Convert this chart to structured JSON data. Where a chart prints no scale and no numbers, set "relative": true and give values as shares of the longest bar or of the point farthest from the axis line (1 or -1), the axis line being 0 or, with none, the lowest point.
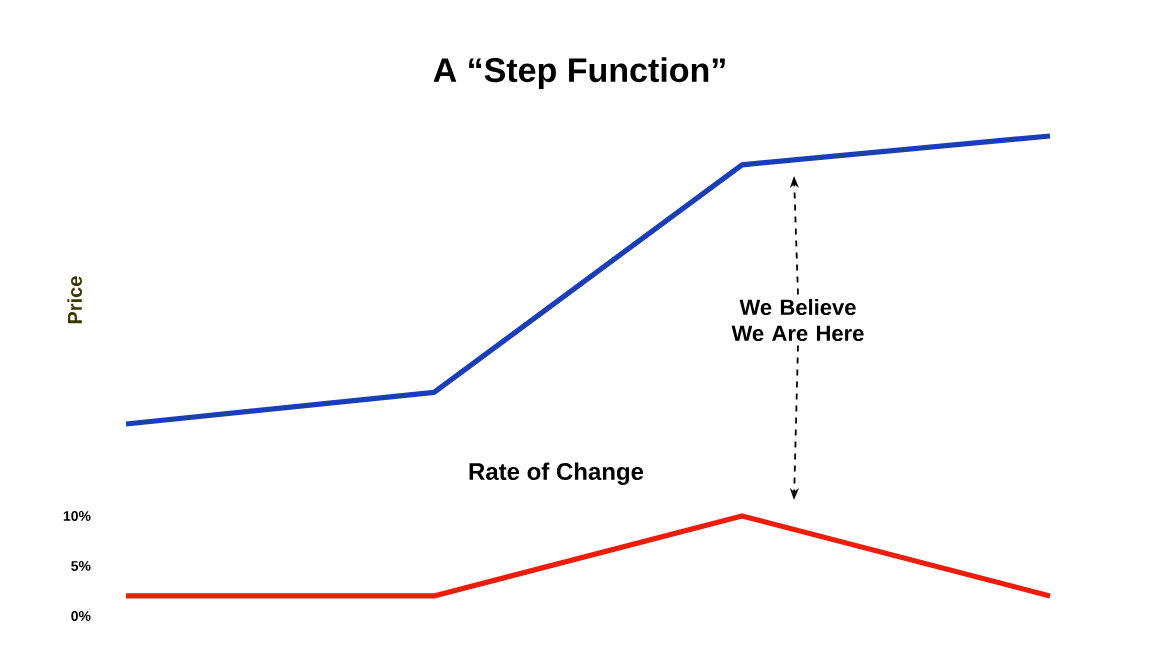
{
  "chart_data": [
    {
      "type": "line",
      "title": "A “Step Function”",
      "ylabel": "Price",
      "categories": [
        null,
        null,
        null,
        null
      ],
      "relative": true,
      "series": [
        {
          "color": "#1a3db8",
          "values": [
            0,
            0.11,
            0.9,
            1
          ]
        }
      ],
      "annotations": [
        "We Believe We Are Here"
      ]
    },
    {
      "type": "line",
      "title": "Rate of Change",
      "categories": [
        null,
        null,
        null,
        null
      ],
      "tick_labels": "y",
      "ylim": [
        0,
        10
      ],
      "yticks": [
        {
          "value": 0,
          "label": "0%"
        },
        {
          "value": 5,
          "label": "5%"
        },
        {
          "value": 10,
          "label": "10%"
        }
      ],
      "series": [
        {
          "color": "#ee1c0a",
          "values": [
            2,
            2,
            10,
            2
          ]
        }
      ]
    }
  ]
}
